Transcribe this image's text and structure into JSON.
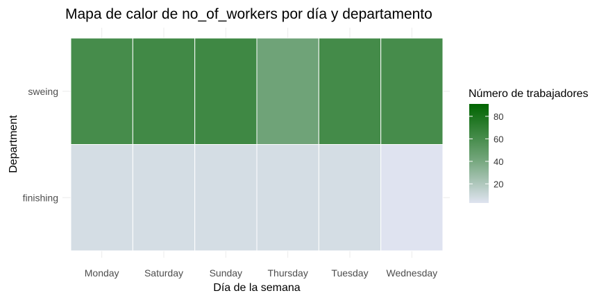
{
  "chart_data": {
    "type": "heatmap",
    "title": "Mapa de calor de no_of_workers por día y departamento",
    "xlabel": "Día de la semana",
    "ylabel": "Department",
    "x_categories": [
      "Monday",
      "Saturday",
      "Sunday",
      "Thursday",
      "Tuesday",
      "Wednesday"
    ],
    "y_categories": [
      "sweing",
      "finishing"
    ],
    "values": [
      [
        58,
        60,
        61,
        40,
        59,
        58
      ],
      [
        5,
        5,
        5,
        5,
        5,
        3
      ]
    ],
    "legend": {
      "title": "Número de trabajadores",
      "ticks": [
        20,
        40,
        60,
        80
      ],
      "min": 3,
      "max": 91,
      "color_low": "#dfe3f0",
      "color_high": "#006400",
      "placement": "right"
    },
    "grid": true
  }
}
